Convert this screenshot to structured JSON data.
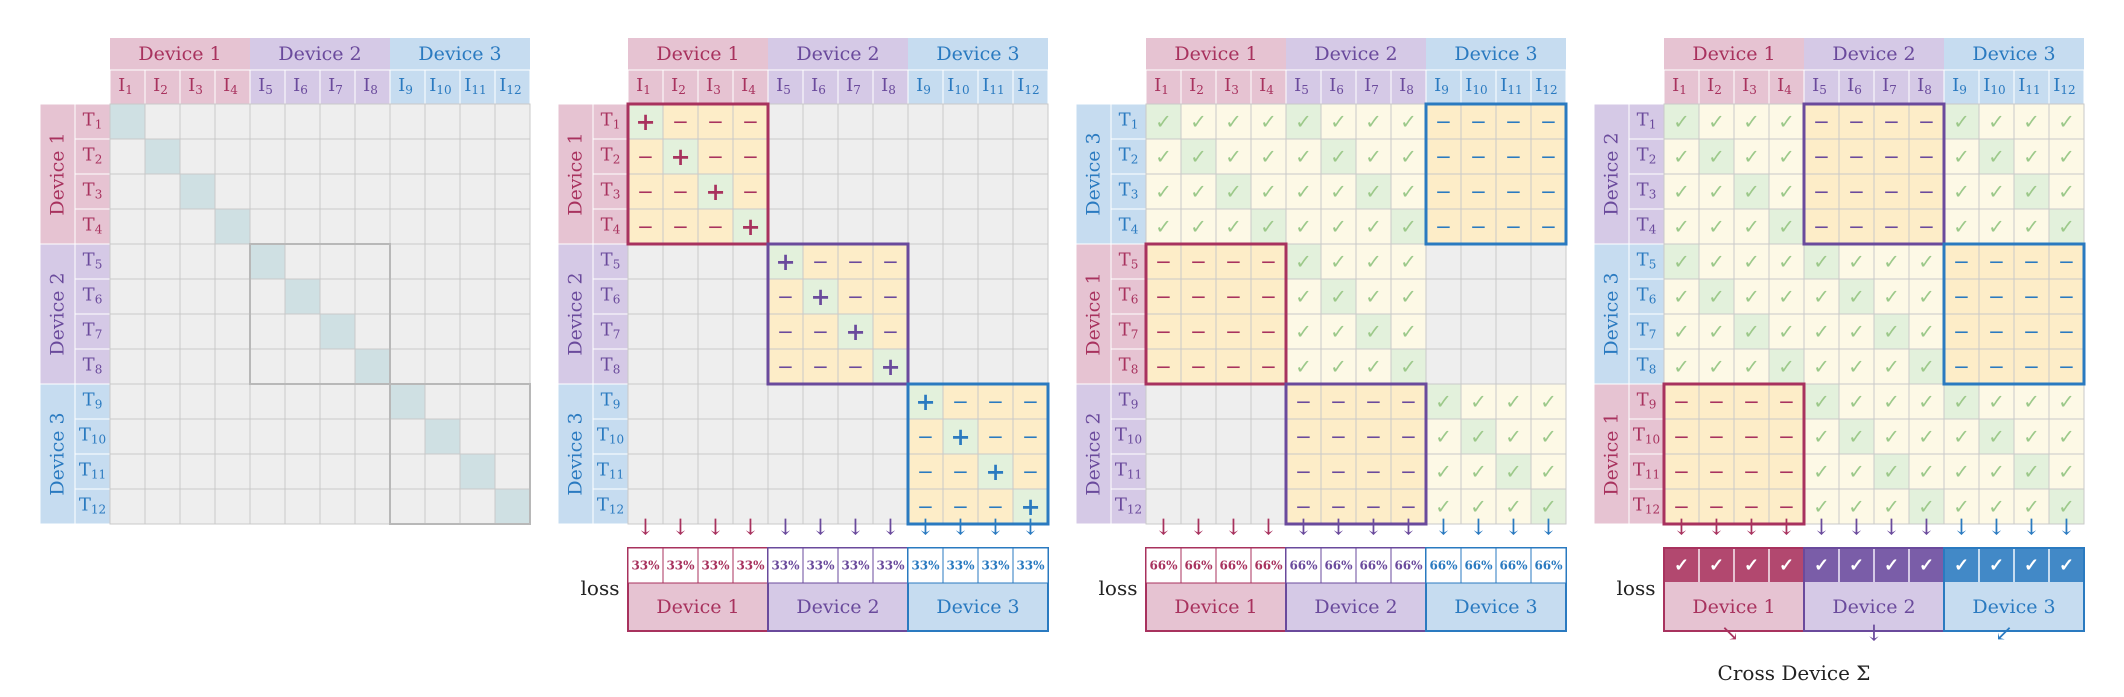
{
  "devices": [
    "Device 1",
    "Device 2",
    "Device 3"
  ],
  "image_labels": [
    "I",
    "I",
    "I",
    "I",
    "I",
    "I",
    "I",
    "I",
    "I",
    "I",
    "I",
    "I"
  ],
  "image_subscripts": [
    "1",
    "2",
    "3",
    "4",
    "5",
    "6",
    "7",
    "8",
    "9",
    "10",
    "11",
    "12"
  ],
  "text_labels": [
    "T",
    "T",
    "T",
    "T",
    "T",
    "T",
    "T",
    "T",
    "T",
    "T",
    "T",
    "T"
  ],
  "text_subscripts": [
    "1",
    "2",
    "3",
    "4",
    "5",
    "6",
    "7",
    "8",
    "9",
    "10",
    "11",
    "12"
  ],
  "row_device_orders": [
    [
      0,
      1,
      2
    ],
    [
      0,
      1,
      2
    ],
    [
      2,
      0,
      1
    ],
    [
      1,
      2,
      0
    ]
  ],
  "loss_label": "loss",
  "loss_percent_panel2": "33%",
  "loss_percent_panel3": "66%",
  "loss_check_panel4": "✓",
  "arrow_glyph": "↓",
  "cross_device_label": "Cross Device Σ",
  "symbols": {
    "positive": "+",
    "negative": "−",
    "check": "✓"
  },
  "colors": {
    "device1": "#a8325e",
    "device2": "#6a4a9c",
    "device3": "#2a7ac0",
    "device1_fill": "#e6c3d2",
    "device2_fill": "#d5c9e6",
    "device3_fill": "#c6dcf0",
    "grid_cell": "#eeeeee",
    "diag_cell": "#cfe0e3",
    "neg_cell": "#fdedc8",
    "check_cell": "#fdf9e6",
    "check_green": "#e3f1dc"
  }
}
